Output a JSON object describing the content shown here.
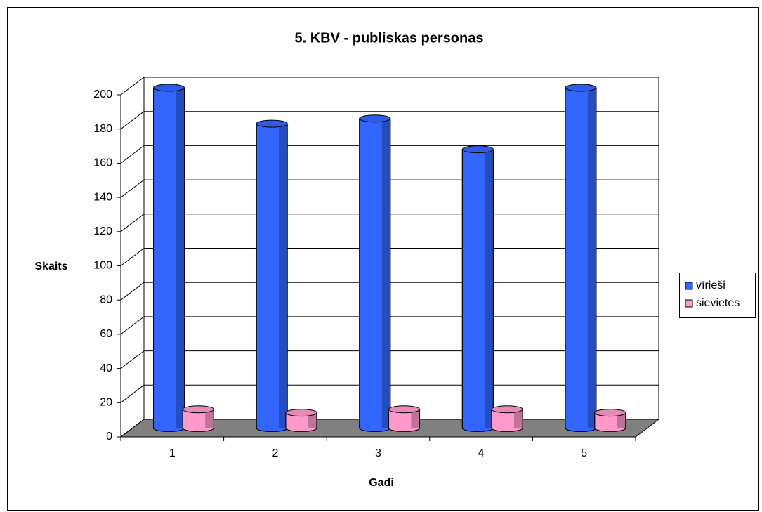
{
  "chart_data": {
    "type": "bar3d",
    "title": "5. KBV - publiskas personas",
    "x_label": "Gadi",
    "y_label": "Skaits",
    "categories": [
      "1",
      "2",
      "3",
      "4",
      "5"
    ],
    "series": [
      {
        "name": "vīrieši",
        "color": "#3366ff",
        "values": [
          199,
          178,
          181,
          163,
          199
        ]
      },
      {
        "name": "sievietes",
        "color": "#ff99cc",
        "values": [
          11,
          9,
          11,
          11,
          9
        ]
      }
    ],
    "ylim": [
      0,
      200
    ],
    "yticks": [
      0,
      20,
      40,
      60,
      80,
      100,
      120,
      140,
      160,
      180,
      200
    ],
    "grid": true,
    "legend": "right"
  }
}
